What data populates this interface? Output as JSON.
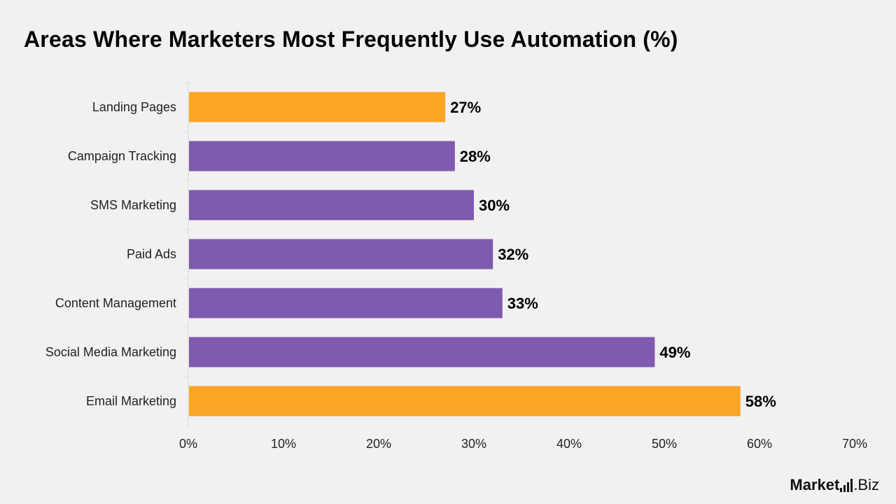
{
  "title": "Areas Where Marketers Most Frequently Use Automation (%)",
  "brand": {
    "part1": "Market",
    "part2": ".Biz"
  },
  "colors": {
    "highlight": "#fba526",
    "default": "#7f5aaf",
    "axis": "#d9d9d9"
  },
  "chart_data": {
    "type": "bar",
    "orientation": "horizontal",
    "title": "Areas Where Marketers Most Frequently Use Automation (%)",
    "xlabel": "",
    "ylabel": "",
    "categories": [
      "Landing Pages",
      "Campaign Tracking",
      "SMS Marketing",
      "Paid Ads",
      "Content Management",
      "Social Media Marketing",
      "Email Marketing"
    ],
    "values": [
      27,
      28,
      30,
      32,
      33,
      49,
      58
    ],
    "value_labels": [
      "27%",
      "28%",
      "30%",
      "32%",
      "33%",
      "49%",
      "58%"
    ],
    "highlighted": [
      true,
      false,
      false,
      false,
      false,
      false,
      true
    ],
    "xlim": [
      0,
      70
    ],
    "x_ticks": [
      0,
      10,
      20,
      30,
      40,
      50,
      60,
      70
    ],
    "x_tick_labels": [
      "0%",
      "10%",
      "20%",
      "30%",
      "40%",
      "50%",
      "60%",
      "70%"
    ],
    "grid": false,
    "legend": "none"
  }
}
